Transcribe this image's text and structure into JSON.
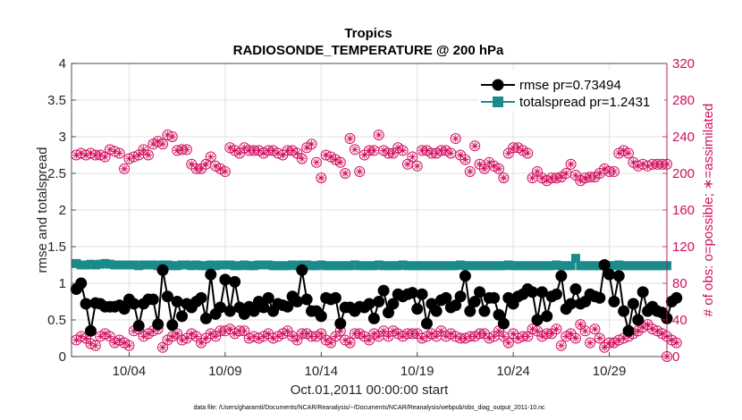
{
  "chart_data": {
    "type": "line",
    "title": "Tropics",
    "subtitle": "RADIOSONDE_TEMPERATURE @ 200 hPa",
    "xlabel": "Oct.01,2011 00:00:00 start",
    "ylabel_left": "rmse and totalspread",
    "ylabel_right": "# of obs: o=possible; ∗=assimilated",
    "xlim": [
      0,
      124
    ],
    "ylim_left": [
      0,
      4
    ],
    "ylim_right": [
      0,
      320
    ],
    "x_ticks": [
      12,
      32,
      52,
      72,
      92,
      112
    ],
    "x_tick_labels": [
      "10/04",
      "10/09",
      "10/14",
      "10/19",
      "10/24",
      "10/29"
    ],
    "y_ticks_left": [
      "0",
      "0.5",
      "1",
      "1.5",
      "2",
      "2.5",
      "3",
      "3.5",
      "4"
    ],
    "y_ticks_right": [
      "0",
      "40",
      "80",
      "120",
      "160",
      "200",
      "240",
      "280",
      "320"
    ],
    "grid": true,
    "legend_position": "top-right",
    "series": [
      {
        "name": "rmse pr=0.73494",
        "color": "#000000",
        "axis": "left",
        "values": [
          0.92,
          1.0,
          0.72,
          0.35,
          0.73,
          0.72,
          0.68,
          0.68,
          0.68,
          0.7,
          0.65,
          0.78,
          0.72,
          0.42,
          0.72,
          0.78,
          0.78,
          0.44,
          1.18,
          0.82,
          0.43,
          0.75,
          0.55,
          0.72,
          0.67,
          0.75,
          0.8,
          0.52,
          1.12,
          0.58,
          0.67,
          1.05,
          0.62,
          1.02,
          0.67,
          0.58,
          0.68,
          0.62,
          0.75,
          0.67,
          0.8,
          0.62,
          0.72,
          0.7,
          0.68,
          0.82,
          0.75,
          1.18,
          0.78,
          0.62,
          0.62,
          0.55,
          0.8,
          0.78,
          0.8,
          0.45,
          0.67,
          0.67,
          0.62,
          0.68,
          0.67,
          0.72,
          0.52,
          0.75,
          0.9,
          0.6,
          0.72,
          0.85,
          0.82,
          0.85,
          0.87,
          0.65,
          0.85,
          0.45,
          0.72,
          0.62,
          0.77,
          0.8,
          0.67,
          0.7,
          0.82,
          1.1,
          0.62,
          0.75,
          0.88,
          0.62,
          0.8,
          0.8,
          0.57,
          0.45,
          0.8,
          0.72,
          0.82,
          0.85,
          0.92,
          0.88,
          0.5,
          0.88,
          0.55,
          0.82,
          0.85,
          1.1,
          0.65,
          0.72,
          0.92,
          0.72,
          0.75,
          0.85,
          0.82,
          0.8,
          1.25,
          1.12,
          0.75,
          1.1,
          0.62,
          0.35,
          0.72,
          0.5,
          0.88,
          0.62,
          0.68,
          0.62,
          0.6,
          0.52,
          0.75,
          0.8
        ],
        "marker": "filled-circle"
      },
      {
        "name": "totalspread pr=1.2431",
        "color": "#1b8a8a",
        "axis": "left",
        "values": [
          1.27,
          1.25,
          1.25,
          1.26,
          1.25,
          1.26,
          1.27,
          1.26,
          1.25,
          1.25,
          1.25,
          1.25,
          1.25,
          1.24,
          1.25,
          1.25,
          1.25,
          1.24,
          1.25,
          1.25,
          1.24,
          1.24,
          1.25,
          1.25,
          1.24,
          1.25,
          1.24,
          1.24,
          1.25,
          1.24,
          1.25,
          1.25,
          1.25,
          1.24,
          1.24,
          1.25,
          1.24,
          1.24,
          1.25,
          1.25,
          1.25,
          1.24,
          1.24,
          1.24,
          1.24,
          1.25,
          1.24,
          1.25,
          1.25,
          1.24,
          1.24,
          1.25,
          1.24,
          1.24,
          1.24,
          1.24,
          1.24,
          1.24,
          1.25,
          1.24,
          1.24,
          1.24,
          1.24,
          1.25,
          1.24,
          1.24,
          1.24,
          1.24,
          1.25,
          1.24,
          1.24,
          1.24,
          1.24,
          1.24,
          1.24,
          1.24,
          1.24,
          1.24,
          1.24,
          1.24,
          1.25,
          1.24,
          1.24,
          1.24,
          1.24,
          1.24,
          1.24,
          1.24,
          1.24,
          1.24,
          1.25,
          1.24,
          1.24,
          1.24,
          1.24,
          1.24,
          1.24,
          1.24,
          1.24,
          1.24,
          1.25,
          1.24,
          1.24,
          1.24,
          1.34,
          1.24,
          1.24,
          1.24,
          1.24,
          1.24,
          1.24,
          1.24,
          1.24,
          1.25,
          1.24,
          1.24,
          1.24,
          1.24,
          1.24,
          1.24,
          1.24,
          1.24,
          1.24,
          1.24
        ],
        "marker": "filled-square"
      },
      {
        "name": "# obs possible/assimilated (upper)",
        "color": "#d1105f",
        "axis": "right",
        "values": [
          220,
          222,
          220,
          222,
          220,
          220,
          218,
          226,
          224,
          222,
          205,
          216,
          218,
          220,
          226,
          220,
          232,
          235,
          232,
          242,
          240,
          225,
          226,
          226,
          210,
          205,
          205,
          210,
          218,
          208,
          205,
          202,
          228,
          225,
          222,
          228,
          225,
          225,
          225,
          222,
          225,
          225,
          222,
          220,
          225,
          225,
          222,
          216,
          228,
          232,
          212,
          195,
          220,
          218,
          215,
          212,
          200,
          238,
          226,
          202,
          220,
          225,
          225,
          242,
          225,
          222,
          222,
          228,
          225,
          210,
          218,
          208,
          225,
          225,
          222,
          222,
          225,
          225,
          222,
          238,
          220,
          215,
          202,
          230,
          210,
          205,
          212,
          208,
          205,
          195,
          222,
          228,
          228,
          225,
          222,
          195,
          202,
          195,
          192,
          195,
          195,
          196,
          200,
          210,
          198,
          192,
          195,
          196,
          196,
          200,
          205,
          202,
          202,
          222,
          225,
          222,
          212,
          208,
          210,
          208,
          210,
          210,
          210,
          210
        ],
        "marker": "asterisk-in-circle"
      },
      {
        "name": "# obs possible/assimilated (lower)",
        "color": "#d1105f",
        "axis": "right",
        "values": [
          18,
          22,
          20,
          14,
          12,
          22,
          25,
          22,
          15,
          18,
          15,
          12,
          28,
          30,
          22,
          25,
          28,
          30,
          10,
          18,
          22,
          25,
          18,
          20,
          25,
          22,
          15,
          20,
          25,
          22,
          28,
          28,
          30,
          25,
          28,
          28,
          20,
          22,
          20,
          22,
          25,
          20,
          22,
          25,
          28,
          22,
          18,
          25,
          25,
          22,
          22,
          25,
          18,
          15,
          22,
          28,
          18,
          15,
          25,
          25,
          22,
          18,
          25,
          22,
          28,
          22,
          28,
          25,
          22,
          25,
          25,
          25,
          20,
          22,
          25,
          22,
          28,
          22,
          25,
          22,
          20,
          20,
          22,
          22,
          25,
          25,
          20,
          22,
          28,
          22,
          15,
          25,
          20,
          22,
          22,
          30,
          28,
          22,
          25,
          25,
          30,
          12,
          22,
          25,
          20,
          35,
          28,
          15,
          30,
          20,
          10,
          15,
          15,
          18,
          20,
          22,
          25,
          28,
          32,
          35,
          30,
          28,
          25,
          22,
          18,
          15
        ]
      }
    ],
    "footer": "data file: /Users/gharamti/Documents/NCAR/Reanalysis/~/Documents/NCAR/Reanalysis/webpub/obs_diag_output_2011-10.nc"
  }
}
